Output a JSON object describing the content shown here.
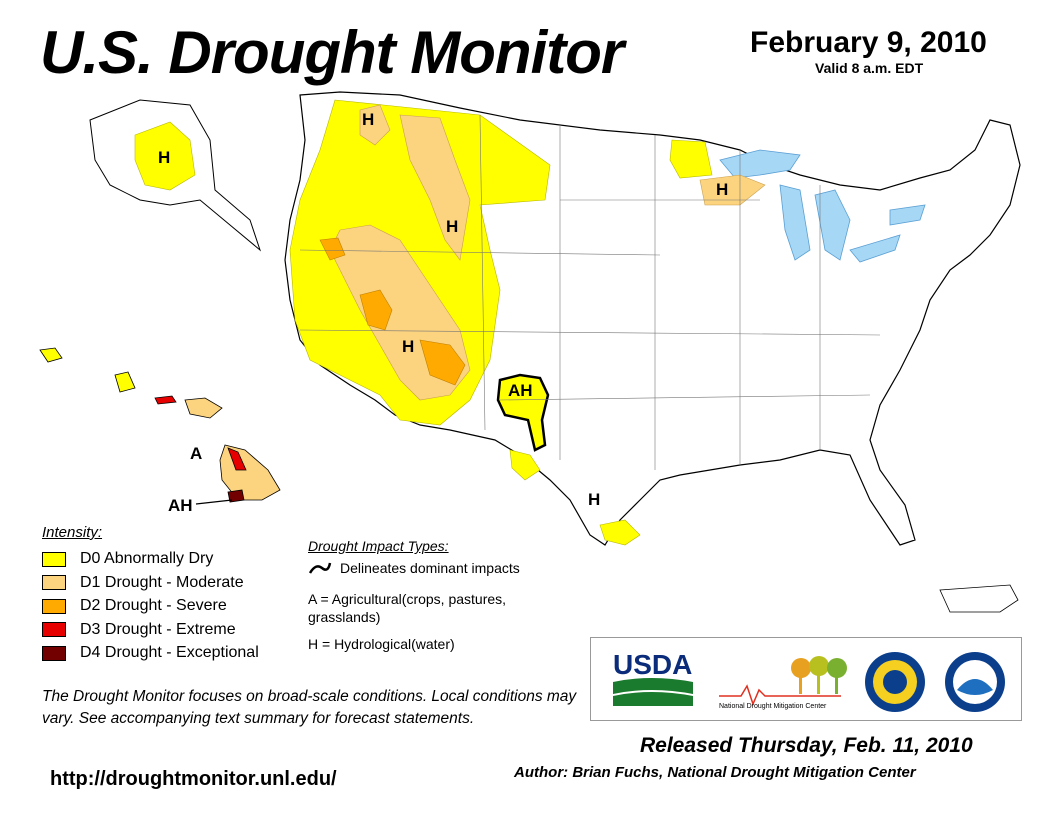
{
  "header": {
    "title": "U.S. Drought Monitor",
    "date": "February 9, 2010",
    "valid": "Valid 8 a.m. EDT"
  },
  "map": {
    "impact_labels": [
      "H",
      "H",
      "H",
      "H",
      "H",
      "AH",
      "H",
      "A",
      "AH"
    ]
  },
  "legend": {
    "title": "Intensity:",
    "items": [
      {
        "label": "D0 Abnormally Dry",
        "color": "#ffff00"
      },
      {
        "label": "D1 Drought - Moderate",
        "color": "#fcd37f"
      },
      {
        "label": "D2 Drought - Severe",
        "color": "#ffaa00"
      },
      {
        "label": "D3 Drought - Extreme",
        "color": "#e60000"
      },
      {
        "label": "D4 Drought - Exceptional",
        "color": "#730000"
      }
    ]
  },
  "impacts": {
    "title": "Drought Impact Types:",
    "line_label": "Delineates dominant impacts",
    "a_label": "A = Agricultural(crops, pastures, grasslands)",
    "h_label": "H = Hydrological(water)"
  },
  "disclaimer": "The Drought Monitor focuses on broad-scale conditions. Local conditions may vary. See accompanying text summary for forecast statements.",
  "url": "http://droughtmonitor.unl.edu/",
  "released": "Released Thursday, Feb. 11, 2010",
  "author": "Author: Brian Fuchs, National Drought Mitigation Center",
  "logos": {
    "usda": "USDA",
    "ndmc": "National Drought Mitigation Center"
  }
}
